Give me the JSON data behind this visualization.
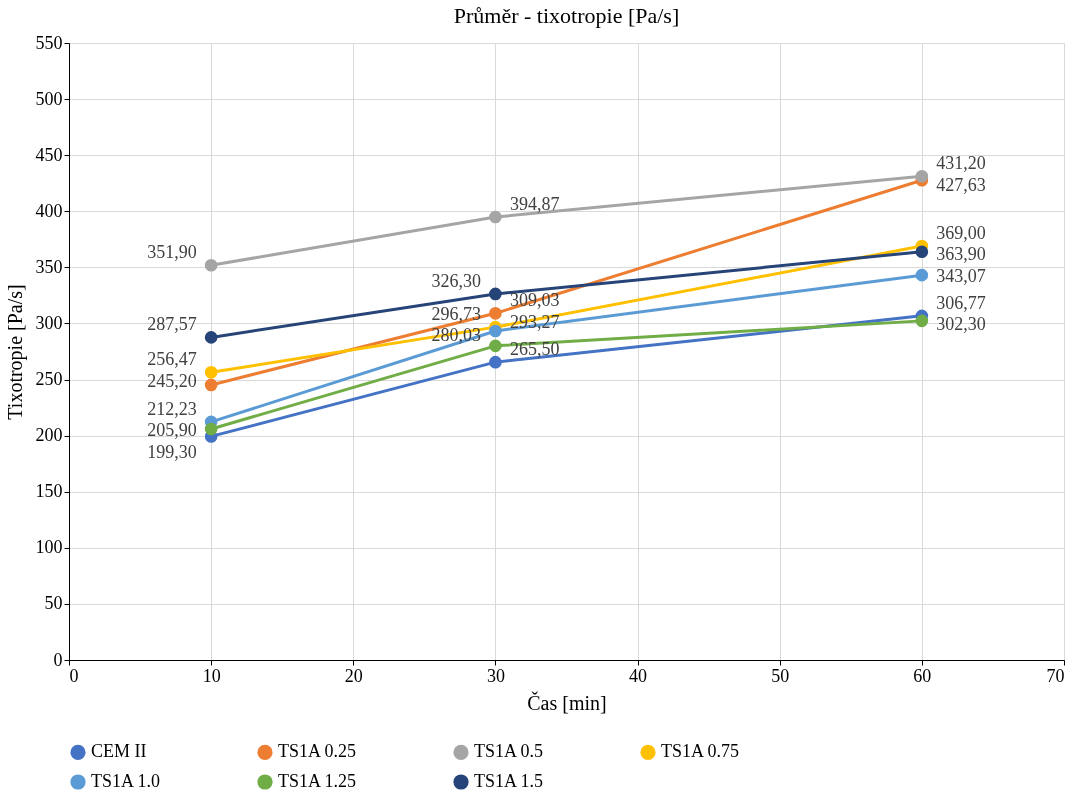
{
  "chart_data": {
    "type": "line",
    "title": "Průměr - tixotropie [Pa/s]",
    "xlabel": "Čas [min]",
    "ylabel": "Tixotropie [Pa/s]",
    "x": [
      10,
      30,
      60
    ],
    "xlim": [
      0,
      70
    ],
    "xticks": [
      0,
      10,
      20,
      30,
      40,
      50,
      60,
      70
    ],
    "ylim": [
      0,
      550
    ],
    "yticks": [
      0,
      50,
      100,
      150,
      200,
      250,
      300,
      350,
      400,
      450,
      500,
      550
    ],
    "grid": true,
    "legend": "bottom",
    "marker": "circle",
    "line_style": "solid",
    "series": [
      {
        "name": "CEM II",
        "color": "#4472c4",
        "values": [
          199.3,
          265.5,
          306.77
        ],
        "value_labels": [
          "199,30",
          "265,50",
          "306,77"
        ]
      },
      {
        "name": "TS1A 0.25",
        "color": "#ed7d31",
        "values": [
          245.2,
          309.03,
          427.63
        ],
        "value_labels": [
          "245,20",
          "309,03",
          "427,63"
        ]
      },
      {
        "name": "TS1A 0.5",
        "color": "#a5a5a5",
        "values": [
          351.9,
          394.87,
          431.2
        ],
        "value_labels": [
          "351,90",
          "394,87",
          "431,20"
        ]
      },
      {
        "name": "TS1A 0.75",
        "color": "#ffc000",
        "values": [
          256.47,
          296.73,
          369.0
        ],
        "value_labels": [
          "256,47",
          "296,73",
          "369,00"
        ]
      },
      {
        "name": "TS1A 1.0",
        "color": "#5b9bd5",
        "values": [
          212.23,
          293.27,
          343.07
        ],
        "value_labels": [
          "212,23",
          "293,27",
          "343,07"
        ]
      },
      {
        "name": "TS1A 1.25",
        "color": "#70ad47",
        "values": [
          205.9,
          280.03,
          302.3
        ],
        "value_labels": [
          "205,90",
          "280,03",
          "302,30"
        ]
      },
      {
        "name": "TS1A 1.5",
        "color": "#264478",
        "values": [
          287.57,
          326.3,
          363.9
        ],
        "value_labels": [
          "287,57",
          "326,30",
          "363,90"
        ]
      }
    ]
  }
}
